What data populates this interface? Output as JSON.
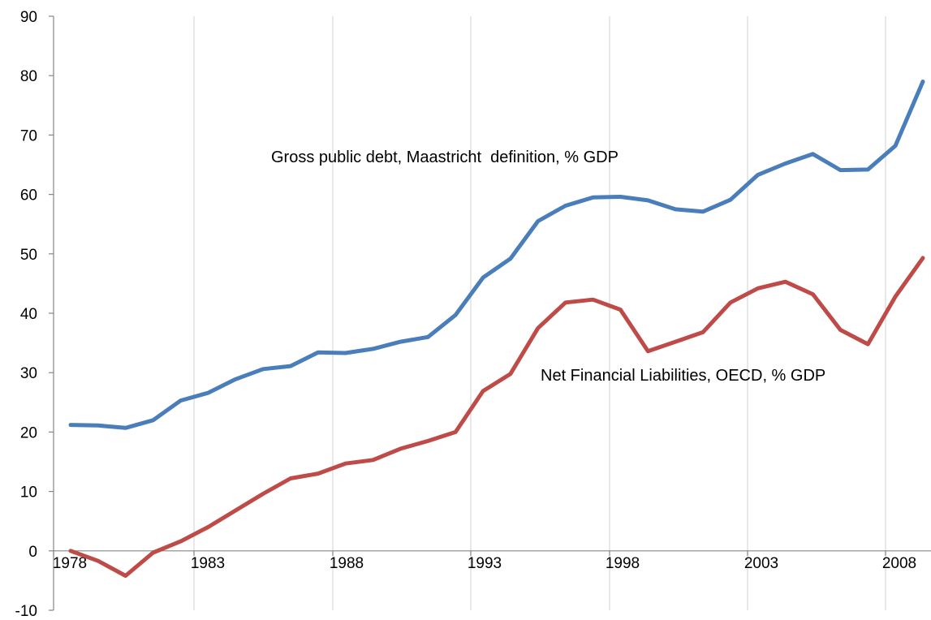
{
  "chart_data": {
    "type": "line",
    "title": "",
    "xlabel": "",
    "ylabel": "",
    "ylim": [
      -10,
      90
    ],
    "yticks": [
      -10,
      0,
      10,
      20,
      30,
      40,
      50,
      60,
      70,
      80,
      90
    ],
    "xlim": [
      1978,
      2009
    ],
    "xticks": [
      1978,
      1983,
      1988,
      1993,
      1998,
      2003,
      2008
    ],
    "grid": "vertical",
    "legend": "none",
    "x": [
      1978,
      1979,
      1980,
      1981,
      1982,
      1983,
      1984,
      1985,
      1986,
      1987,
      1988,
      1989,
      1990,
      1991,
      1992,
      1993,
      1994,
      1995,
      1996,
      1997,
      1998,
      1999,
      2000,
      2001,
      2002,
      2003,
      2004,
      2005,
      2006,
      2007,
      2008,
      2009
    ],
    "series": [
      {
        "name": "Gross public debt, Maastricht  definition, % GDP",
        "color": "#4a7ebb",
        "values": [
          21.2,
          21.1,
          20.7,
          22.0,
          25.3,
          26.6,
          28.9,
          30.6,
          31.1,
          33.4,
          33.3,
          34.0,
          35.2,
          36.0,
          39.7,
          46.0,
          49.2,
          55.5,
          58.1,
          59.5,
          59.6,
          59.0,
          57.5,
          57.1,
          59.1,
          63.3,
          65.2,
          66.8,
          64.1,
          64.2,
          68.2,
          79.0
        ]
      },
      {
        "name": "Net Financial Liabilities, OECD, % GDP",
        "color": "#be4b48",
        "values": [
          0.0,
          -1.7,
          -4.2,
          -0.3,
          1.6,
          4.0,
          6.8,
          9.6,
          12.2,
          13.0,
          14.7,
          15.3,
          17.2,
          18.5,
          20.0,
          26.9,
          29.8,
          37.5,
          41.8,
          42.3,
          40.6,
          33.6,
          35.2,
          36.8,
          41.8,
          44.2,
          45.3,
          43.2,
          37.2,
          34.8,
          42.8,
          49.3
        ]
      }
    ]
  }
}
